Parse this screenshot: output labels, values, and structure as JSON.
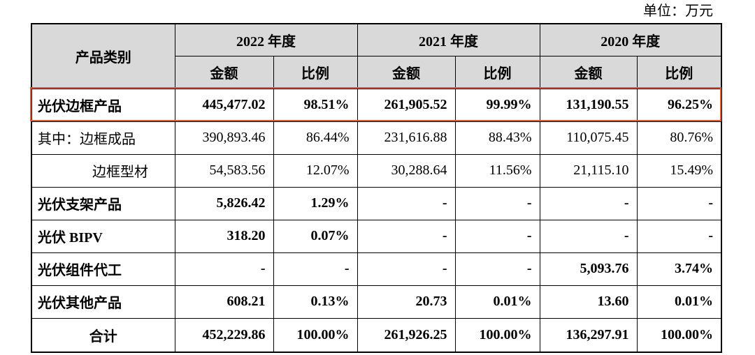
{
  "unit_label": "单位：万元",
  "header": {
    "category": "产品类别",
    "years": [
      "2022 年度",
      "2021 年度",
      "2020 年度"
    ],
    "amount": "金额",
    "ratio": "比例"
  },
  "rows": [
    {
      "label": "光伏边框产品",
      "values": [
        "445,477.02",
        "98.51%",
        "261,905.52",
        "99.99%",
        "131,190.55",
        "96.25%"
      ]
    },
    {
      "label": "其中：边框成品",
      "values": [
        "390,893.46",
        "86.44%",
        "231,616.88",
        "88.43%",
        "110,075.45",
        "80.76%"
      ]
    },
    {
      "label": "边框型材",
      "values": [
        "54,583.56",
        "12.07%",
        "30,288.64",
        "11.56%",
        "21,115.10",
        "15.49%"
      ]
    },
    {
      "label": "光伏支架产品",
      "values": [
        "5,826.42",
        "1.29%",
        "-",
        "-",
        "-",
        "-"
      ]
    },
    {
      "label": "光伏 BIPV",
      "values": [
        "318.20",
        "0.07%",
        "-",
        "-",
        "-",
        "-"
      ]
    },
    {
      "label": "光伏组件代工",
      "values": [
        "-",
        "-",
        "-",
        "-",
        "5,093.76",
        "3.74%"
      ]
    },
    {
      "label": "光伏其他产品",
      "values": [
        "608.21",
        "0.13%",
        "20.73",
        "0.01%",
        "13.60",
        "0.01%"
      ]
    },
    {
      "label": "合计",
      "values": [
        "452,229.86",
        "100.00%",
        "261,926.25",
        "100.00%",
        "136,297.91",
        "100.00%"
      ]
    }
  ],
  "colors": {
    "header_bg": "#d9d9d9",
    "highlight_border": "#e8562a",
    "grid": "#000000",
    "text": "#000000"
  }
}
